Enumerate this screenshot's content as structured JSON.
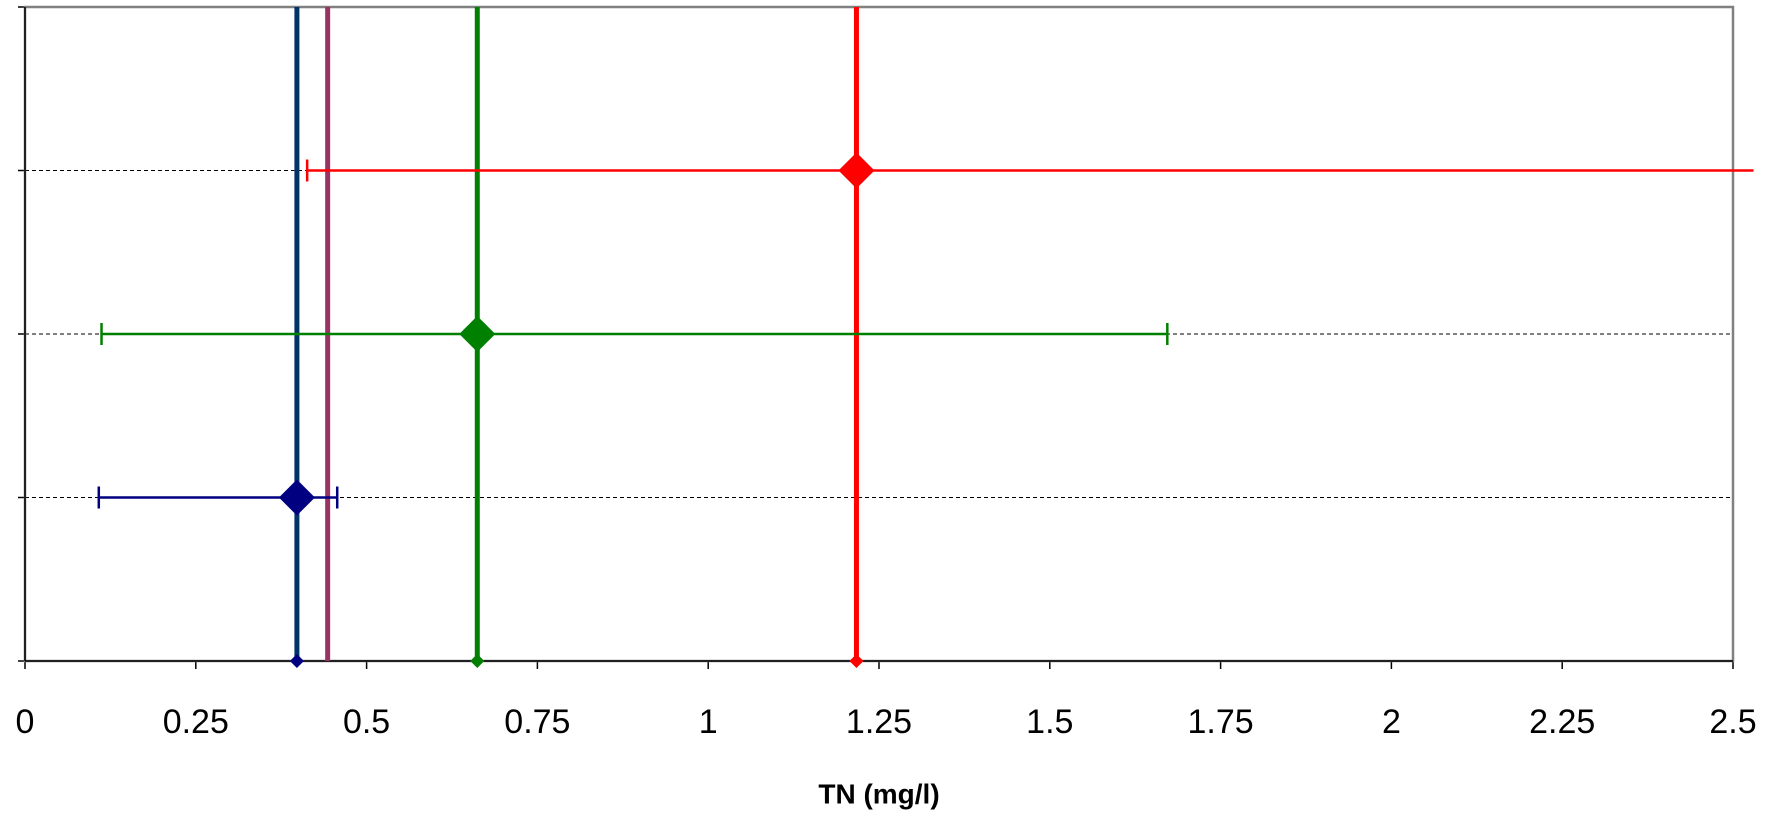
{
  "chart_data": {
    "type": "scatter",
    "xlabel": "TN (mg/l)",
    "xlim": [
      0,
      2.5
    ],
    "xticks": [
      0,
      0.25,
      0.5,
      0.75,
      1,
      1.25,
      1.5,
      1.75,
      2,
      2.25,
      2.5
    ],
    "ylim": [
      0,
      4
    ],
    "yticks": [
      0,
      1,
      2,
      3,
      4
    ],
    "grid": true,
    "series": [
      {
        "color": "#000080",
        "x": [
          0.398
        ],
        "values": [
          1
        ],
        "xerr_minus": [
          0.29
        ],
        "xerr_plus": [
          0.059
        ]
      },
      {
        "color": "#008000",
        "x": [
          0.662
        ],
        "values": [
          2
        ],
        "xerr_minus": [
          0.55
        ],
        "xerr_plus": [
          1.01
        ]
      },
      {
        "color": "#ff0000",
        "x": [
          1.217
        ],
        "values": [
          3
        ],
        "xerr_minus": [
          0.804
        ],
        "xerr_plus": [
          1.313
        ]
      }
    ],
    "vlines": [
      {
        "color": "#003366",
        "x": 0.398,
        "marker_color": "#000080"
      },
      {
        "color": "#993366",
        "x": 0.443
      },
      {
        "color": "#008000",
        "x": 0.662,
        "marker_color": "#008000"
      },
      {
        "color": "#ff0000",
        "x": 1.217,
        "marker_color": "#ff0000"
      }
    ]
  }
}
